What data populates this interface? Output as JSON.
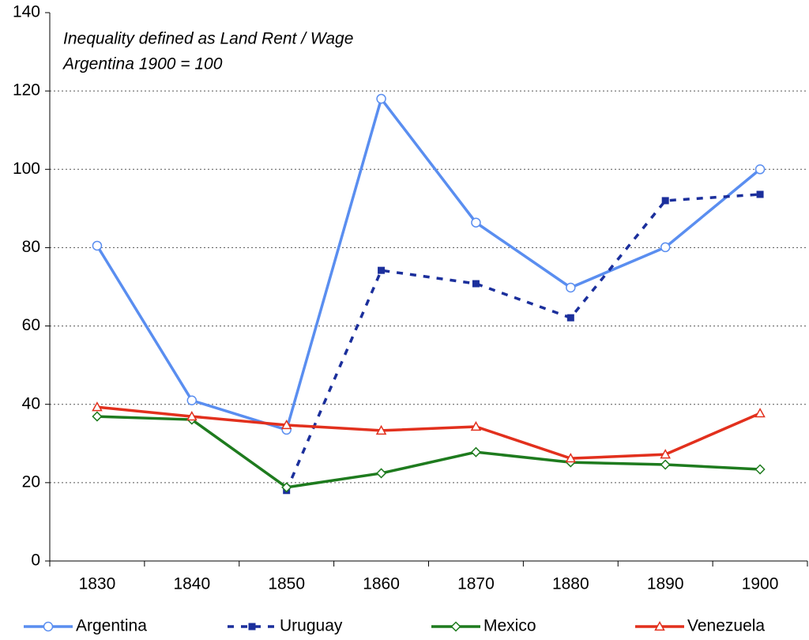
{
  "chart_data": {
    "type": "line",
    "annotations": [
      "Inequality defined as Land Rent / Wage",
      "Argentina 1900 = 100"
    ],
    "categories": [
      "1830",
      "1840",
      "1850",
      "1860",
      "1870",
      "1880",
      "1890",
      "1900"
    ],
    "series": [
      {
        "name": "Argentina",
        "color": "#5a8ef0",
        "marker": "circle",
        "line_style": "solid",
        "values": [
          80.5,
          41,
          33.5,
          118,
          86.4,
          69.8,
          80.1,
          100
        ]
      },
      {
        "name": "Uruguay",
        "color": "#1b2f9c",
        "marker": "square",
        "line_style": "dashed",
        "values": [
          null,
          null,
          18,
          74.2,
          70.8,
          62.1,
          92,
          93.6
        ]
      },
      {
        "name": "Mexico",
        "color": "#1e7b1e",
        "marker": "diamond",
        "line_style": "solid",
        "values": [
          36.9,
          36.1,
          18.8,
          22.4,
          27.8,
          25.2,
          24.6,
          23.4
        ]
      },
      {
        "name": "Venezuela",
        "color": "#e2301d",
        "marker": "triangle",
        "line_style": "solid",
        "values": [
          39.3,
          36.9,
          34.7,
          33.3,
          34.3,
          26.2,
          27.2,
          37.7
        ]
      }
    ],
    "ylim": [
      0,
      140
    ],
    "yticks": [
      0,
      20,
      40,
      60,
      80,
      100,
      120,
      140
    ],
    "grid": true,
    "legend": "bottom"
  }
}
